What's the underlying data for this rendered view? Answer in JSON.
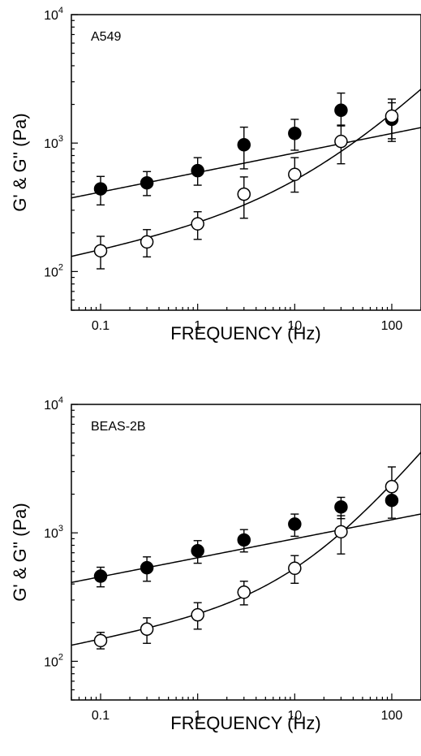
{
  "chart_data": [
    {
      "type": "scatter",
      "panel_label": "A549",
      "xlabel": "FREQUENCY (Hz)",
      "ylabel": "G' & G'' (Pa)",
      "x_scale": "log",
      "y_scale": "log",
      "xlim": [
        0.05,
        200
      ],
      "ylim": [
        50,
        10000
      ],
      "x_ticks": [
        0.1,
        1,
        10,
        100
      ],
      "x_tick_labels": [
        "0.1",
        "1",
        "10",
        "100"
      ],
      "y_tick_labels": [
        {
          "value": 100,
          "base": "10",
          "exp": "2"
        },
        {
          "value": 1000,
          "base": "10",
          "exp": "3"
        },
        {
          "value": 10000,
          "base": "10",
          "exp": "4"
        }
      ],
      "series": [
        {
          "marker": "filled-circle",
          "x": [
            0.1,
            0.3,
            1,
            3,
            10,
            30,
            100
          ],
          "y": [
            440,
            490,
            610,
            970,
            1190,
            1800,
            1530
          ],
          "err_low": [
            330,
            390,
            470,
            630,
            880,
            1360,
            1030
          ],
          "err_high": [
            550,
            600,
            770,
            1330,
            1530,
            2450,
            2060
          ],
          "fit": {
            "a": 590,
            "alpha": 0.152,
            "xmin": 0.05,
            "xmax": 200
          }
        },
        {
          "marker": "open-circle",
          "x": [
            0.1,
            0.3,
            1,
            3,
            10,
            30,
            100
          ],
          "y": [
            145,
            170,
            235,
            400,
            570,
            1030,
            1620
          ],
          "err_low": [
            105,
            130,
            178,
            260,
            415,
            690,
            1080
          ],
          "err_high": [
            188,
            212,
            292,
            545,
            770,
            1380,
            2200
          ],
          "fit": {
            "a": 200,
            "alpha": 0.152,
            "b": 41,
            "beta": 0.75,
            "xmin": 0.05,
            "xmax": 200
          }
        }
      ]
    },
    {
      "type": "scatter",
      "panel_label": "BEAS-2B",
      "xlabel": "FREQUENCY (Hz)",
      "ylabel": "G' & G'' (Pa)",
      "x_scale": "log",
      "y_scale": "log",
      "xlim": [
        0.05,
        200
      ],
      "ylim": [
        50,
        10000
      ],
      "x_ticks": [
        0.1,
        1,
        10,
        100
      ],
      "x_tick_labels": [
        "0.1",
        "1",
        "10",
        "100"
      ],
      "y_tick_labels": [
        {
          "value": 100,
          "base": "10",
          "exp": "2"
        },
        {
          "value": 1000,
          "base": "10",
          "exp": "3"
        },
        {
          "value": 10000,
          "base": "10",
          "exp": "4"
        }
      ],
      "series": [
        {
          "marker": "filled-circle",
          "x": [
            0.1,
            0.3,
            1,
            3,
            10,
            30,
            100
          ],
          "y": [
            460,
            535,
            725,
            880,
            1170,
            1590,
            1790
          ],
          "err_low": [
            380,
            420,
            580,
            710,
            940,
            1290,
            1300
          ],
          "err_high": [
            540,
            650,
            870,
            1060,
            1400,
            1890,
            2280
          ],
          "fit": {
            "a": 640,
            "alpha": 0.148,
            "xmin": 0.05,
            "xmax": 200
          }
        },
        {
          "marker": "open-circle",
          "x": [
            0.1,
            0.3,
            1,
            3,
            10,
            30,
            100
          ],
          "y": [
            145,
            178,
            230,
            345,
            530,
            1020,
            2290
          ],
          "err_low": [
            125,
            138,
            178,
            275,
            405,
            685,
            1670
          ],
          "err_high": [
            168,
            218,
            286,
            420,
            665,
            1360,
            3260
          ],
          "fit": {
            "a": 205,
            "alpha": 0.148,
            "b": 29,
            "beta": 0.92,
            "xmin": 0.05,
            "xmax": 200
          }
        }
      ]
    }
  ]
}
